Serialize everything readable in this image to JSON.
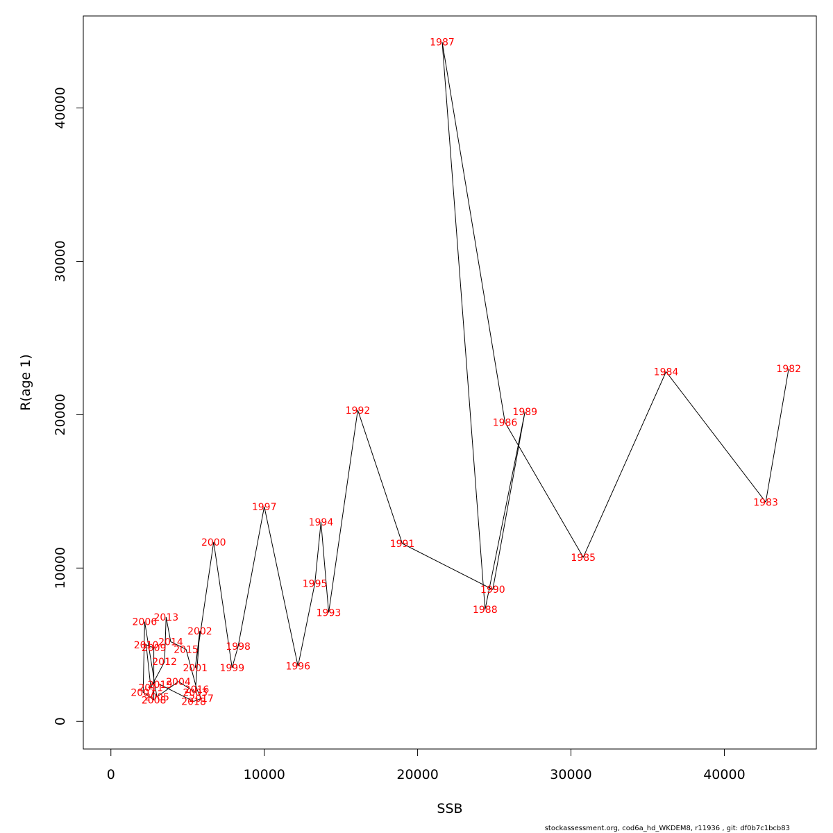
{
  "chart_data": {
    "type": "line",
    "xlabel": "SSB",
    "ylabel": "R(age 1)",
    "xlim": [
      -1800,
      46000
    ],
    "ylim": [
      -1800,
      46000
    ],
    "x_ticks": [
      0,
      10000,
      20000,
      30000,
      40000
    ],
    "y_ticks": [
      0,
      10000,
      20000,
      30000,
      40000
    ],
    "grid": false,
    "line_color": "#000000",
    "label_color": "#ff0000",
    "points": [
      {
        "year": "1982",
        "x": 44200,
        "y": 23000
      },
      {
        "year": "1983",
        "x": 42700,
        "y": 14300
      },
      {
        "year": "1984",
        "x": 36200,
        "y": 22800
      },
      {
        "year": "1985",
        "x": 30800,
        "y": 10700
      },
      {
        "year": "1986",
        "x": 25700,
        "y": 19500
      },
      {
        "year": "1987",
        "x": 21600,
        "y": 44300
      },
      {
        "year": "1988",
        "x": 24400,
        "y": 7300
      },
      {
        "year": "1989",
        "x": 27000,
        "y": 20200
      },
      {
        "year": "1990",
        "x": 24900,
        "y": 8600
      },
      {
        "year": "1991",
        "x": 19000,
        "y": 11600
      },
      {
        "year": "1992",
        "x": 16100,
        "y": 20300
      },
      {
        "year": "1993",
        "x": 14200,
        "y": 7100
      },
      {
        "year": "1994",
        "x": 13700,
        "y": 13000
      },
      {
        "year": "1995",
        "x": 13300,
        "y": 9000
      },
      {
        "year": "1996",
        "x": 12200,
        "y": 3600
      },
      {
        "year": "1997",
        "x": 10000,
        "y": 14000
      },
      {
        "year": "1998",
        "x": 8300,
        "y": 4900
      },
      {
        "year": "1999",
        "x": 7900,
        "y": 3500
      },
      {
        "year": "2000",
        "x": 6700,
        "y": 11700
      },
      {
        "year": "2001",
        "x": 5500,
        "y": 3500
      },
      {
        "year": "2002",
        "x": 5800,
        "y": 5900
      },
      {
        "year": "2003",
        "x": 5500,
        "y": 1900
      },
      {
        "year": "2004",
        "x": 4400,
        "y": 2600
      },
      {
        "year": "2005",
        "x": 3000,
        "y": 1600
      },
      {
        "year": "2006",
        "x": 2200,
        "y": 6500
      },
      {
        "year": "2007",
        "x": 2100,
        "y": 1900
      },
      {
        "year": "2008",
        "x": 2800,
        "y": 1400
      },
      {
        "year": "2009",
        "x": 2800,
        "y": 4800
      },
      {
        "year": "2010",
        "x": 2300,
        "y": 5000
      },
      {
        "year": "2011",
        "x": 2600,
        "y": 2200
      },
      {
        "year": "2012",
        "x": 3500,
        "y": 3900
      },
      {
        "year": "2013",
        "x": 3600,
        "y": 6800
      },
      {
        "year": "2014",
        "x": 3900,
        "y": 5200
      },
      {
        "year": "2015",
        "x": 4900,
        "y": 4700
      },
      {
        "year": "2016",
        "x": 5600,
        "y": 2100
      },
      {
        "year": "2017",
        "x": 5900,
        "y": 1500
      },
      {
        "year": "2018",
        "x": 5400,
        "y": 1300
      },
      {
        "year": "2019",
        "x": 3200,
        "y": 2400
      }
    ]
  },
  "footer": "stockassessment.org, cod6a_hd_WKDEM8, r11936 , git: df0b7c1bcb83"
}
